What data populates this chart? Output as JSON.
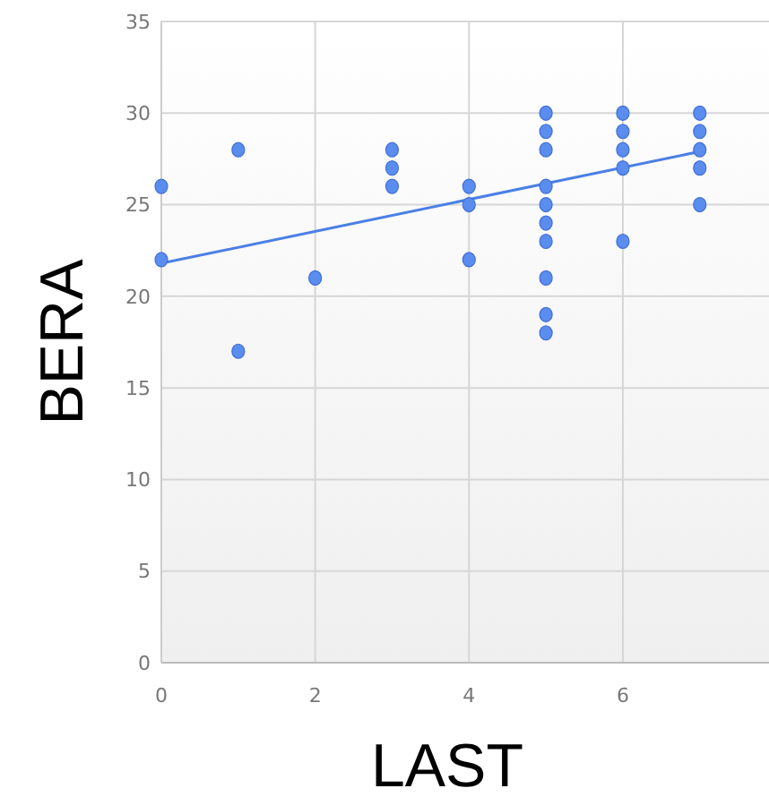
{
  "chart_data": {
    "type": "scatter",
    "xlabel": "LAST",
    "ylabel": "BERA",
    "xlim": [
      0,
      7.9
    ],
    "xticks": [
      0,
      2,
      4,
      6
    ],
    "ylim": [
      0,
      35
    ],
    "yticks": [
      0,
      5,
      10,
      15,
      20,
      25,
      30,
      35
    ],
    "grid": true,
    "series": [
      {
        "marker": "circle",
        "color": "#5b8def",
        "x": [
          0,
          0,
          1,
          1,
          2,
          3,
          3,
          3,
          4,
          4,
          4,
          5,
          5,
          5,
          5,
          5,
          5,
          5,
          5,
          5,
          5,
          6,
          6,
          6,
          6,
          6,
          7,
          7,
          7,
          7,
          7
        ],
        "values": [
          26,
          22,
          28,
          17,
          21,
          28,
          27,
          26,
          26,
          25,
          22,
          30,
          29,
          28,
          26,
          25,
          24,
          23,
          21,
          19,
          18,
          30,
          29,
          28,
          27,
          23,
          30,
          29,
          28,
          27,
          25
        ]
      },
      {
        "type": "line",
        "marker": "none",
        "color": "#4a7fe6",
        "x": [
          0,
          7
        ],
        "values": [
          21.8,
          27.9
        ]
      }
    ]
  }
}
